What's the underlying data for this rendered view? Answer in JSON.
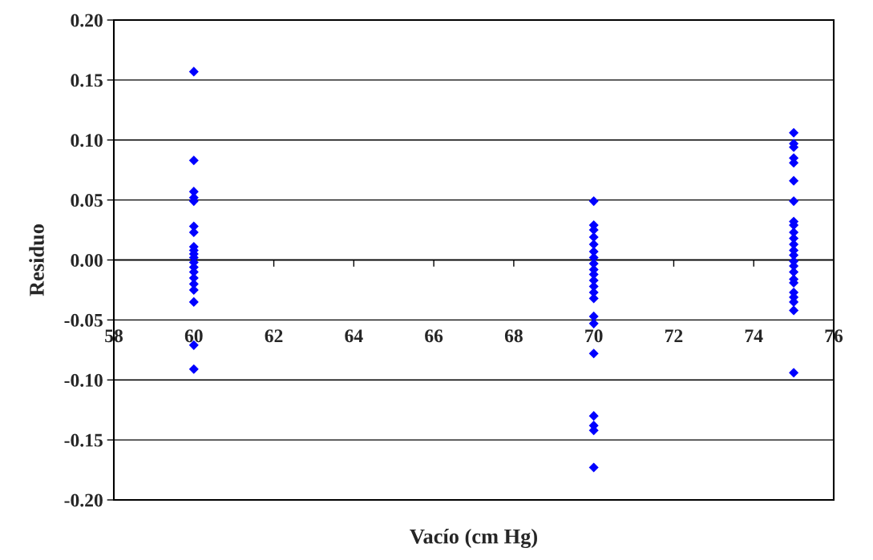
{
  "chart_data": {
    "type": "scatter",
    "xlabel": "Vacío (cm Hg)",
    "ylabel": "Residuo",
    "series": [
      {
        "color": "#0000ff",
        "x": [
          60,
          60,
          60,
          60,
          60,
          60,
          60,
          60,
          60,
          60,
          60,
          60,
          60,
          60,
          60,
          60,
          60,
          60,
          60,
          60
        ],
        "values": [
          0.157,
          0.083,
          0.057,
          0.052,
          0.049,
          0.028,
          0.023,
          0.011,
          0.008,
          0.005,
          0.002,
          -0.002,
          -0.006,
          -0.01,
          -0.015,
          -0.02,
          -0.025,
          -0.035,
          -0.071,
          -0.091
        ]
      },
      {
        "color": "#0000ff",
        "x": [
          70,
          70,
          70,
          70,
          70,
          70,
          70,
          70,
          70,
          70,
          70,
          70,
          70,
          70,
          70,
          70,
          70,
          70,
          70,
          70,
          70
        ],
        "values": [
          0.049,
          0.029,
          0.025,
          0.019,
          0.013,
          0.007,
          0.002,
          -0.003,
          -0.008,
          -0.012,
          -0.017,
          -0.022,
          -0.027,
          -0.032,
          -0.047,
          -0.053,
          -0.078,
          -0.13,
          -0.138,
          -0.142,
          -0.173
        ]
      },
      {
        "color": "#0000ff",
        "x": [
          75,
          75,
          75,
          75,
          75,
          75,
          75,
          75,
          75,
          75,
          75,
          75,
          75,
          75,
          75,
          75,
          75,
          75,
          75,
          75,
          75,
          75,
          75,
          75
        ],
        "values": [
          0.106,
          0.097,
          0.094,
          0.085,
          0.081,
          0.066,
          0.049,
          0.032,
          0.029,
          0.023,
          0.018,
          0.013,
          0.008,
          0.004,
          -0.001,
          -0.005,
          -0.01,
          -0.016,
          -0.019,
          -0.027,
          -0.031,
          -0.035,
          -0.042,
          -0.094
        ]
      }
    ],
    "xlim": [
      58,
      76
    ],
    "xticks": [
      58,
      60,
      62,
      64,
      66,
      68,
      70,
      72,
      74,
      76
    ],
    "ylim": [
      -0.2,
      0.2
    ],
    "yticks": [
      {
        "value": -0.2,
        "label": "-0.20"
      },
      {
        "value": -0.15,
        "label": "-0.15"
      },
      {
        "value": -0.1,
        "label": "-0.10"
      },
      {
        "value": -0.05,
        "label": "-0.05"
      },
      {
        "value": 0,
        "label": "0.00"
      },
      {
        "value": 0.05,
        "label": "0.05"
      },
      {
        "value": 0.1,
        "label": "0.10"
      },
      {
        "value": 0.15,
        "label": "0.15"
      },
      {
        "value": 0.2,
        "label": "0.20"
      }
    ],
    "grid": "y",
    "marker": "diamond"
  }
}
